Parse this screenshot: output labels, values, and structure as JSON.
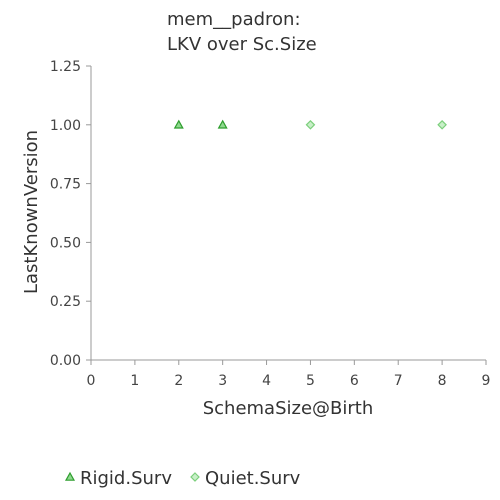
{
  "chart_data": {
    "type": "scatter",
    "title_lines": [
      "mem__padron:",
      "LKV over Sc.Size"
    ],
    "xlabel": "SchemaSize@Birth",
    "ylabel": "LastKnownVersion",
    "xlim": [
      0,
      9
    ],
    "ylim": [
      0,
      1.25
    ],
    "x_ticks": [
      "0",
      "1",
      "2",
      "3",
      "4",
      "5",
      "6",
      "7",
      "8",
      "9"
    ],
    "y_ticks": [
      "0.00",
      "0.25",
      "0.50",
      "0.75",
      "1.00",
      "1.25"
    ],
    "grid": false,
    "legend_position": "bottom",
    "series": [
      {
        "name": "Rigid.Surv",
        "marker": "triangle",
        "color": "#2e9e2e",
        "fill": "#8fd88f",
        "points": [
          {
            "x": 2,
            "y": 1.0
          },
          {
            "x": 3,
            "y": 1.0
          }
        ]
      },
      {
        "name": "Quiet.Surv",
        "marker": "diamond",
        "color": "#7ccf7c",
        "fill": "#c8efc8",
        "points": [
          {
            "x": 5,
            "y": 1.0
          },
          {
            "x": 8,
            "y": 1.0
          }
        ]
      }
    ]
  }
}
